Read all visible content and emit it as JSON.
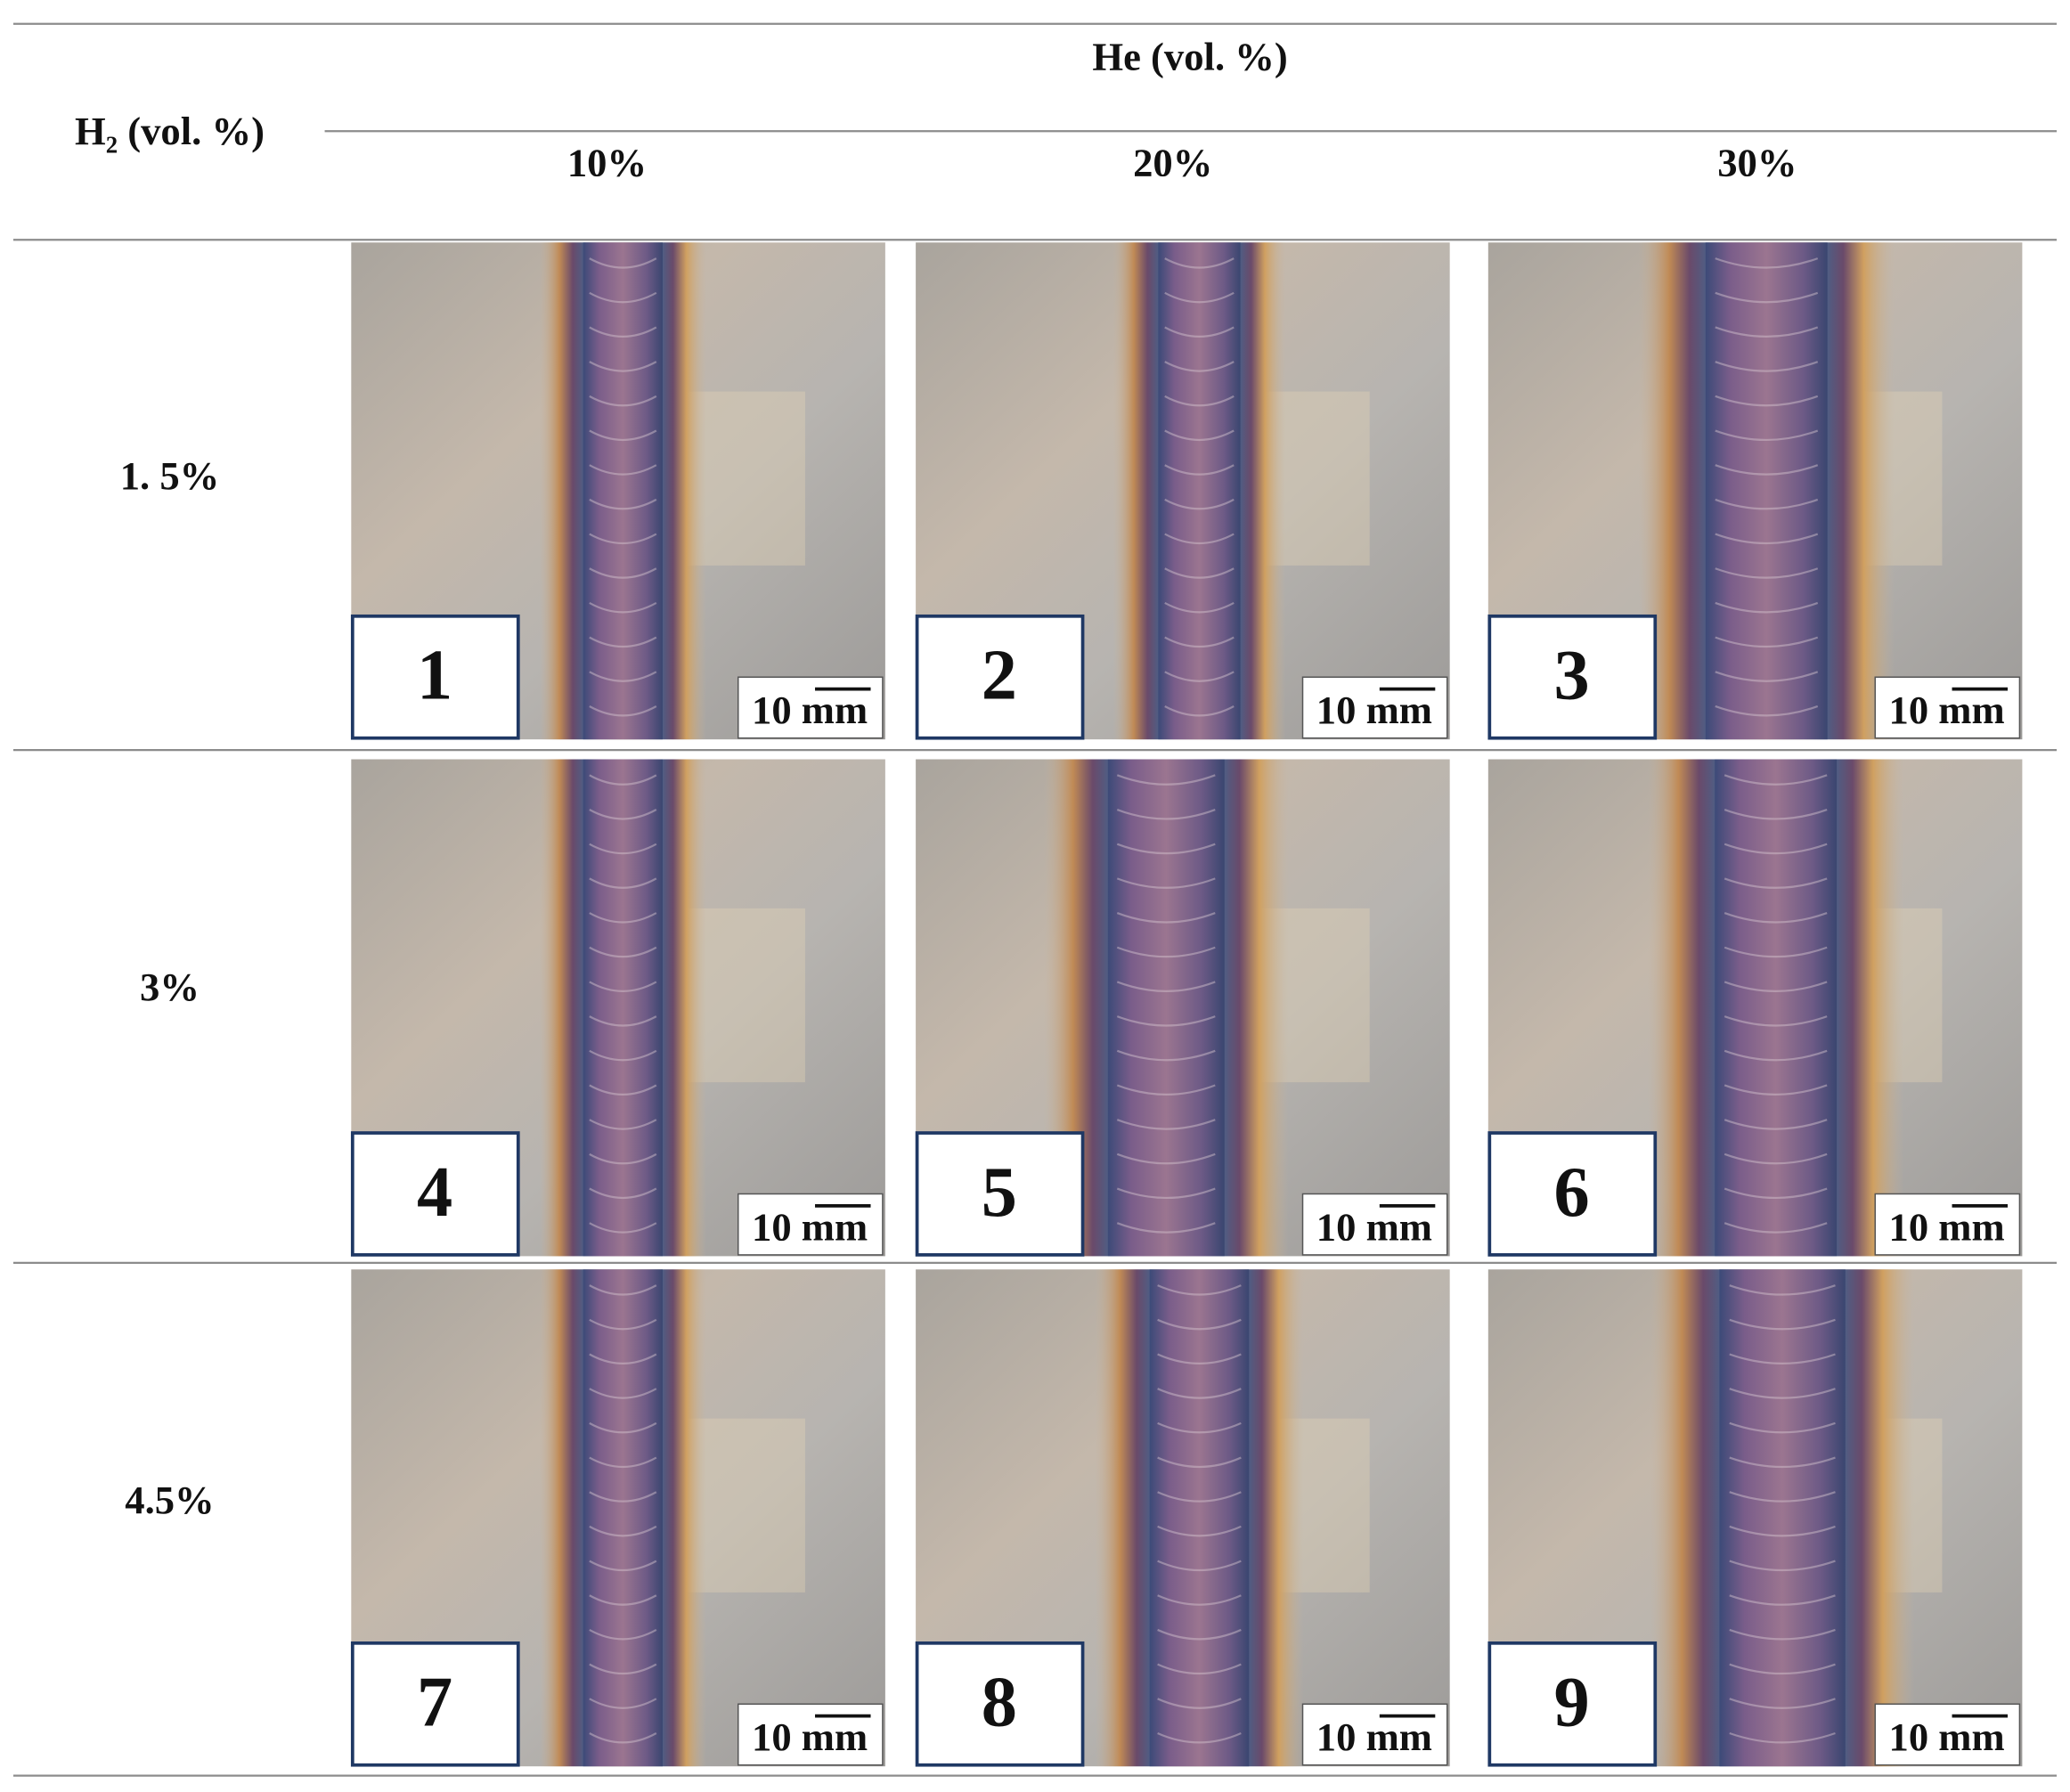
{
  "header": {
    "row_header": "H₂ (vol. %)",
    "column_group": "He (vol. %)",
    "columns": [
      "10%",
      "20%",
      "30%"
    ]
  },
  "rows": [
    {
      "label": "1. 5%",
      "cells": [
        {
          "number": "1",
          "scale": "10 mm"
        },
        {
          "number": "2",
          "scale": "10 mm"
        },
        {
          "number": "3",
          "scale": "10 mm"
        }
      ]
    },
    {
      "label": "3%",
      "cells": [
        {
          "number": "4",
          "scale": "10 mm"
        },
        {
          "number": "5",
          "scale": "10 mm"
        },
        {
          "number": "6",
          "scale": "10 mm"
        }
      ]
    },
    {
      "label": "4.5%",
      "cells": [
        {
          "number": "7",
          "scale": "10 mm"
        },
        {
          "number": "8",
          "scale": "10 mm"
        },
        {
          "number": "9",
          "scale": "10 mm"
        }
      ]
    }
  ]
}
